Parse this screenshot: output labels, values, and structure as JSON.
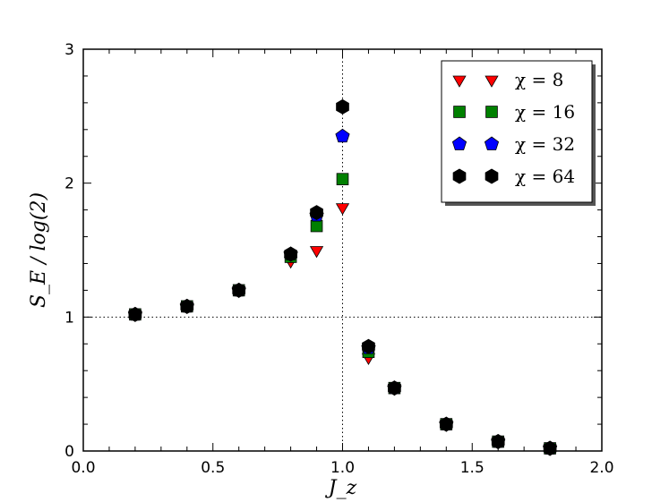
{
  "chart_data": {
    "type": "scatter",
    "title": "",
    "xlabel": "J_z",
    "ylabel": "S_E / log(2)",
    "xlim": [
      0.0,
      2.0
    ],
    "ylim": [
      0,
      3
    ],
    "xticks": [
      "0.0",
      "0.5",
      "1.0",
      "1.5",
      "2.0"
    ],
    "yticks": [
      "0",
      "1",
      "2",
      "3"
    ],
    "grid": false,
    "reference_lines": [
      {
        "orientation": "vertical",
        "value": 1.0,
        "style": "dotted"
      },
      {
        "orientation": "horizontal",
        "value": 1.0,
        "style": "dotted"
      }
    ],
    "legend": {
      "position": "top-right"
    },
    "series": [
      {
        "name": "χ = 8",
        "marker": "triangle-down",
        "color": "#ff0000",
        "x": [
          0.2,
          0.4,
          0.6,
          0.8,
          0.9,
          1.0,
          1.1,
          1.2,
          1.4,
          1.6,
          1.8
        ],
        "y": [
          1.02,
          1.08,
          1.2,
          1.42,
          1.5,
          1.82,
          0.7,
          0.47,
          0.2,
          0.07,
          0.02
        ]
      },
      {
        "name": "χ = 16",
        "marker": "square",
        "color": "#008000",
        "x": [
          0.2,
          0.4,
          0.6,
          0.8,
          0.9,
          1.0,
          1.1,
          1.2,
          1.4,
          1.6,
          1.8
        ],
        "y": [
          1.02,
          1.08,
          1.2,
          1.45,
          1.68,
          2.03,
          0.74,
          0.47,
          0.2,
          0.07,
          0.02
        ]
      },
      {
        "name": "χ = 32",
        "marker": "pentagon",
        "color": "#0000ff",
        "x": [
          0.2,
          0.4,
          0.6,
          0.8,
          0.9,
          1.0,
          1.1,
          1.2,
          1.4,
          1.6,
          1.8
        ],
        "y": [
          1.02,
          1.08,
          1.2,
          1.47,
          1.76,
          2.35,
          0.77,
          0.47,
          0.2,
          0.07,
          0.02
        ]
      },
      {
        "name": "χ = 64",
        "marker": "hexagon",
        "color": "#000000",
        "x": [
          0.2,
          0.4,
          0.6,
          0.8,
          0.9,
          1.0,
          1.1,
          1.2,
          1.4,
          1.6,
          1.8
        ],
        "y": [
          1.02,
          1.08,
          1.2,
          1.47,
          1.78,
          2.57,
          0.78,
          0.47,
          0.2,
          0.07,
          0.02
        ]
      }
    ]
  }
}
